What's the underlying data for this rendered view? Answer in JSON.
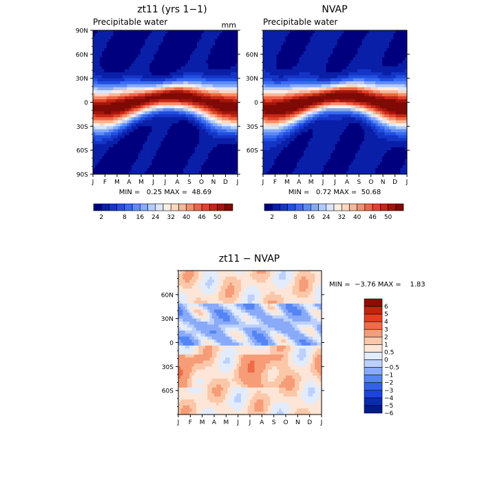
{
  "palette": {
    "abs": [
      "#00007f",
      "#0a1fa8",
      "#1535c7",
      "#2150e0",
      "#3a6bf0",
      "#5e8bf7",
      "#86aaf9",
      "#b3cbfb",
      "#dbe6fc",
      "#fdeee2",
      "#fcd7c0",
      "#f9b698",
      "#f58e6c",
      "#ee6644",
      "#e2432a",
      "#c62615",
      "#a3150c",
      "#7f0a06"
    ],
    "diff": [
      "#001b8c",
      "#0a2cb2",
      "#1d45d6",
      "#3361ea",
      "#5585f4",
      "#89aaf8",
      "#bcd0fb",
      "#e2ecfc",
      "#fde6d7",
      "#fbc7a9",
      "#f69c77",
      "#ef6c48",
      "#e43f22",
      "#c1250f",
      "#8f0b04"
    ]
  },
  "chart_data": [
    {
      "id": "panel-zt11",
      "type": "heatmap",
      "title": "zt11 (yrs 1−1)",
      "subtitle": "Precipitable water",
      "units": "mm",
      "x_ticks": [
        "J",
        "F",
        "M",
        "A",
        "M",
        "J",
        "J",
        "A",
        "S",
        "O",
        "N",
        "D",
        "J"
      ],
      "y_ticks": [
        "90N",
        "60N",
        "30N",
        "0",
        "30S",
        "60S",
        "90S"
      ],
      "stats_text": "MIN =   0.25 MAX =  48.69",
      "min": 0.25,
      "max": 48.69,
      "colorbar_labels": [
        "2",
        "8",
        "16",
        "24",
        "32",
        "40",
        "46",
        "50"
      ]
    },
    {
      "id": "panel-nvap",
      "type": "heatmap",
      "title": "NVAP",
      "subtitle": "Precipitable water",
      "x_ticks": [
        "J",
        "F",
        "M",
        "A",
        "M",
        "J",
        "J",
        "A",
        "S",
        "O",
        "N",
        "D",
        "J"
      ],
      "y_ticks": [
        "60N",
        "30N",
        "0",
        "30S",
        "60S"
      ],
      "stats_text": "MIN =   0.72 MAX =  50.68",
      "min": 0.72,
      "max": 50.68,
      "colorbar_labels": [
        "2",
        "8",
        "16",
        "24",
        "32",
        "40",
        "46",
        "50"
      ]
    },
    {
      "id": "panel-diff",
      "type": "heatmap",
      "title": "zt11 − NVAP",
      "x_ticks": [
        "J",
        "F",
        "M",
        "A",
        "M",
        "J",
        "J",
        "A",
        "S",
        "O",
        "N",
        "D",
        "J"
      ],
      "y_ticks": [
        "60N",
        "30N",
        "0",
        "30S",
        "60S"
      ],
      "stats_text": "MIN =  −3.76 MAX =    1.83",
      "min": -3.76,
      "max": 1.83,
      "colorbar_labels": [
        "6",
        "5",
        "4",
        "3",
        "2",
        "1",
        "0.5",
        "0",
        "−0.5",
        "−1",
        "−2",
        "−3",
        "−4",
        "−5",
        "−6"
      ]
    }
  ]
}
